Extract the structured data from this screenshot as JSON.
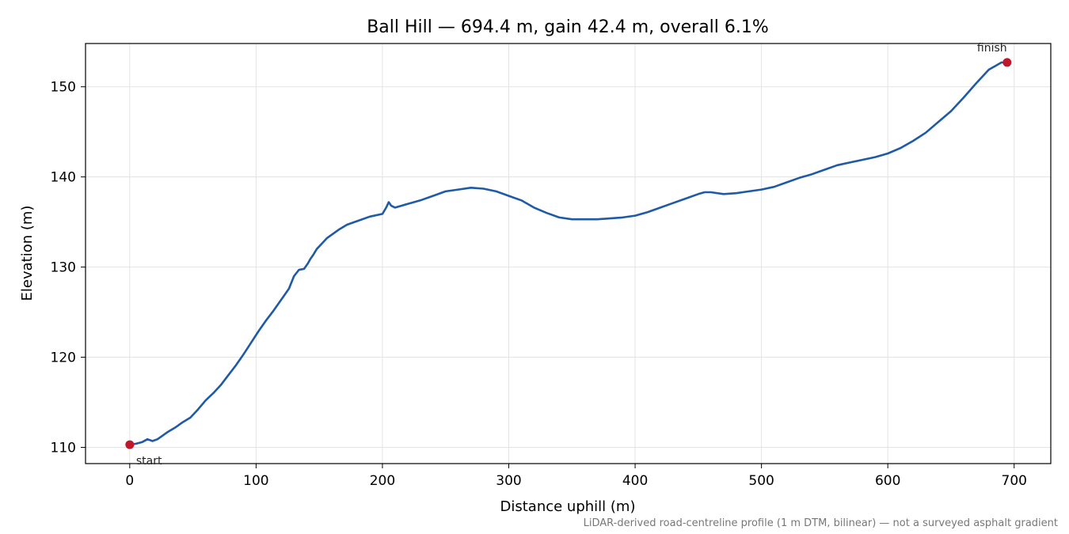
{
  "chart_data": {
    "type": "line",
    "title": "Ball Hill — 694.4 m, gain 42.4 m, overall 6.1%",
    "xlabel": "Distance uphill (m)",
    "ylabel": "Elevation (m)",
    "footnote": "LiDAR-derived road-centreline profile (1 m DTM, bilinear) — not a surveyed asphalt gradient",
    "xlim": [
      -35,
      729
    ],
    "ylim": [
      108.2,
      154.8
    ],
    "xticks": [
      0,
      100,
      200,
      300,
      400,
      500,
      600,
      700
    ],
    "yticks": [
      110,
      120,
      130,
      140,
      150
    ],
    "grid": true,
    "line_color": "#1f5aa6",
    "marker_color": "#c0182a",
    "series": [
      {
        "x": [
          0,
          5,
          10,
          14,
          18,
          22,
          26,
          30,
          36,
          42,
          48,
          54,
          60,
          66,
          72,
          78,
          84,
          90,
          96,
          102,
          108,
          114,
          120,
          126,
          130,
          134,
          138,
          141,
          143,
          145,
          148,
          152,
          156,
          160,
          166,
          172,
          180,
          190,
          200,
          203,
          205,
          207,
          210,
          215,
          220,
          230,
          240,
          250,
          260,
          270,
          280,
          290,
          300,
          310,
          320,
          330,
          340,
          350,
          360,
          370,
          380,
          390,
          400,
          410,
          420,
          430,
          440,
          450,
          455,
          460,
          470,
          480,
          490,
          500,
          510,
          520,
          530,
          540,
          550,
          560,
          570,
          580,
          590,
          600,
          610,
          620,
          630,
          640,
          650,
          660,
          670,
          680,
          685,
          690,
          694.4
        ],
        "y": [
          110.3,
          110.4,
          110.6,
          110.9,
          110.7,
          110.9,
          111.3,
          111.7,
          112.2,
          112.8,
          113.3,
          114.2,
          115.2,
          116.0,
          116.9,
          118.0,
          119.1,
          120.3,
          121.6,
          122.9,
          124.1,
          125.2,
          126.4,
          127.6,
          129.0,
          129.7,
          129.8,
          130.4,
          130.9,
          131.3,
          132.0,
          132.6,
          133.2,
          133.6,
          134.2,
          134.7,
          135.1,
          135.6,
          135.9,
          136.6,
          137.2,
          136.8,
          136.6,
          136.8,
          137.0,
          137.4,
          137.9,
          138.4,
          138.6,
          138.8,
          138.7,
          138.4,
          137.9,
          137.4,
          136.6,
          136.0,
          135.5,
          135.3,
          135.3,
          135.3,
          135.4,
          135.5,
          135.7,
          136.1,
          136.6,
          137.1,
          137.6,
          138.1,
          138.3,
          138.3,
          138.1,
          138.2,
          138.4,
          138.6,
          138.9,
          139.4,
          139.9,
          140.3,
          140.8,
          141.3,
          141.6,
          141.9,
          142.2,
          142.6,
          143.2,
          144.0,
          144.9,
          146.1,
          147.3,
          148.8,
          150.4,
          151.9,
          152.3,
          152.7,
          152.7
        ]
      }
    ],
    "annotations": [
      {
        "label": "start",
        "x": 0,
        "y": 110.3
      },
      {
        "label": "finish",
        "x": 694.4,
        "y": 152.7
      }
    ]
  }
}
